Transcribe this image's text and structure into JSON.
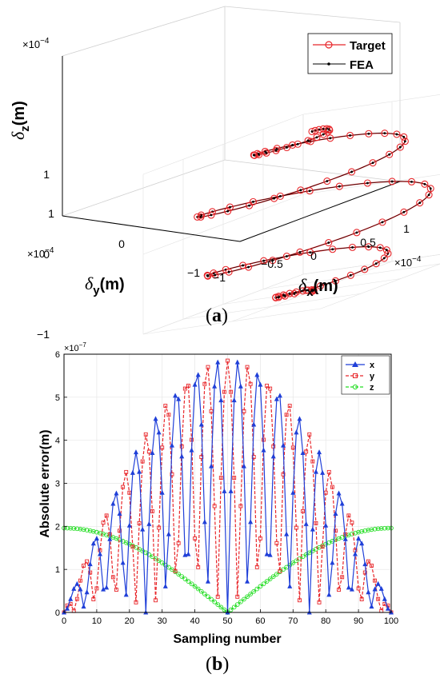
{
  "chart_data": [
    {
      "panel_label": "a",
      "type": "line3d",
      "xlabel_sym": "δ",
      "xlabel_sub": "x",
      "xlabel_unit": "(m)",
      "ylabel_sym": "δ",
      "ylabel_sub": "y",
      "ylabel_unit": "(m)",
      "zlabel_sym": "δ",
      "zlabel_sub": "z",
      "zlabel_unit": "(m)",
      "exponent_base": "×10",
      "exponent_power": "−4",
      "x_ticks": [
        "−1",
        "−0.5",
        "0",
        "0.5",
        "1"
      ],
      "y_ticks": [
        "−1",
        "0",
        "1"
      ],
      "z_ticks": [
        "−1",
        "0",
        "1"
      ],
      "xlim": [
        -0.0001,
        0.0001
      ],
      "ylim": [
        -0.0001,
        0.0001
      ],
      "zlim": [
        -0.0001,
        0.0001
      ],
      "grid": true,
      "legend_position": "top-right",
      "series": [
        {
          "name": "Target",
          "color": "#e8262a",
          "marker": "circle",
          "parametric": {
            "t_start": 0,
            "t_end": 25.13,
            "x": "1e-4*sin(pi*tau)*cos(t)",
            "y": "1e-4*sin(pi*tau)*sin(t)",
            "z": "-1e-4*cos(pi*tau)",
            "tau": "t/25.13",
            "points": 100
          }
        },
        {
          "name": "FEA",
          "color": "#000000",
          "marker": "dot",
          "parametric": {
            "t_start": 0,
            "t_end": 25.13,
            "x": "1e-4*sin(pi*tau)*cos(t)",
            "y": "1e-4*sin(pi*tau)*sin(t)",
            "z": "-1e-4*cos(pi*tau)",
            "tau": "t/25.13",
            "points": 100
          }
        }
      ]
    },
    {
      "panel_label": "b",
      "type": "line",
      "xlabel": "Sampling number",
      "ylabel": "Absolute error(m)",
      "exponent_base": "×10",
      "exponent_power": "−7",
      "xlim": [
        0,
        100
      ],
      "ylim": [
        0,
        6e-07
      ],
      "x_ticks": [
        0,
        10,
        20,
        30,
        40,
        50,
        60,
        70,
        80,
        90,
        100
      ],
      "y_ticks": [
        0,
        1,
        2,
        3,
        4,
        5,
        6
      ],
      "grid": true,
      "legend_position": "top-right",
      "series": [
        {
          "name": "x",
          "color": "#1f3fd8",
          "style": "solid",
          "marker": "triangle",
          "formula": "5.85e-7*abs(sin(pi*n/100))*abs(sin(4*pi*n/25))"
        },
        {
          "name": "y",
          "color": "#e8262a",
          "style": "dashed",
          "marker": "square",
          "formula": "5.85e-7*abs(sin(pi*n/100))*abs(cos(4*pi*n/25))"
        },
        {
          "name": "z",
          "color": "#22dd22",
          "style": "dashed",
          "marker": "circle",
          "formula": "1.96e-7*abs(cos(pi*n/100))"
        }
      ]
    }
  ]
}
